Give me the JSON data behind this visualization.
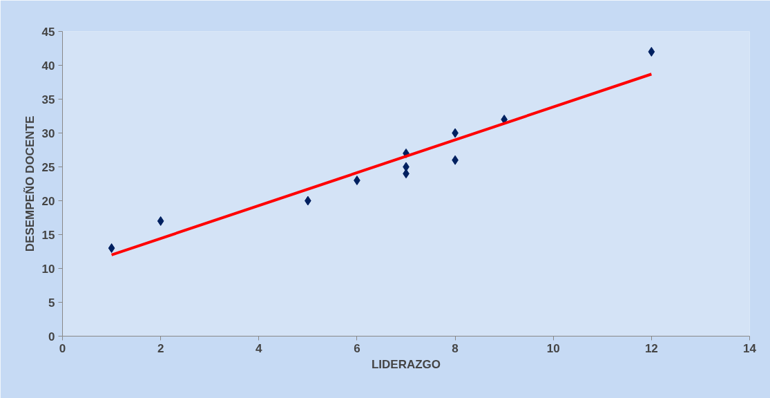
{
  "chart_data": {
    "type": "scatter",
    "xlabel": "LIDERAZGO",
    "ylabel": "DESEMPEÑO DOCENTE",
    "xlim": [
      0,
      14
    ],
    "xticks": [
      0,
      2,
      4,
      6,
      8,
      10,
      12,
      14
    ],
    "ylim": [
      0,
      45
    ],
    "yticks": [
      0,
      5,
      10,
      15,
      20,
      25,
      30,
      35,
      40,
      45
    ],
    "grid": false,
    "marker": "diamond",
    "series": [
      {
        "color": "#002060",
        "x": [
          1,
          2,
          5,
          6,
          7,
          7,
          7,
          8,
          8,
          9,
          12
        ],
        "values": [
          13,
          17,
          20,
          23,
          27,
          25,
          24,
          30,
          26,
          32,
          42
        ]
      },
      {
        "type": "line",
        "color": "#ff0000",
        "marker": "none",
        "line_style": "solid",
        "x": [
          1,
          12
        ],
        "values": [
          12.0,
          38.7
        ]
      }
    ]
  }
}
